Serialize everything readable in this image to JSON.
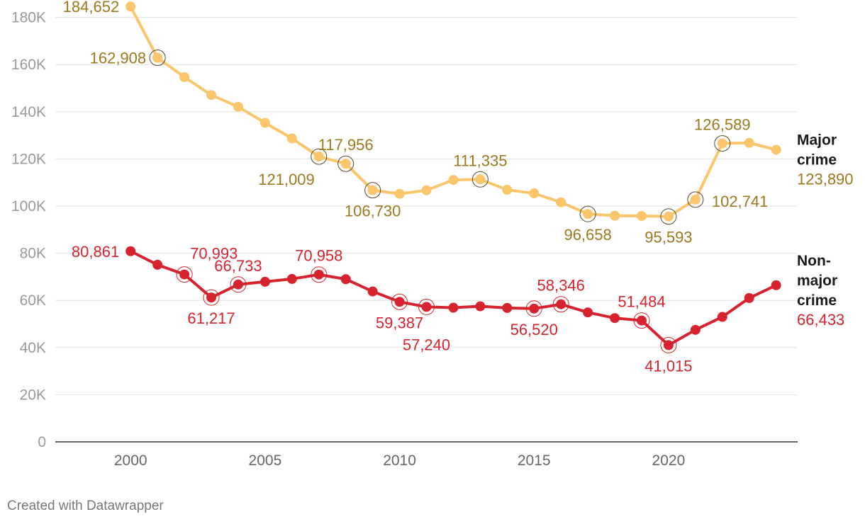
{
  "chart_data": {
    "type": "line",
    "title": "",
    "xlabel": "",
    "ylabel": "",
    "x": [
      2000,
      2001,
      2002,
      2003,
      2004,
      2005,
      2006,
      2007,
      2008,
      2009,
      2010,
      2011,
      2012,
      2013,
      2014,
      2015,
      2016,
      2017,
      2018,
      2019,
      2020,
      2021,
      2022,
      2023,
      2024
    ],
    "xlim": [
      1997.2,
      2024.8
    ],
    "ylim": [
      0,
      185000
    ],
    "yticks": [
      {
        "value": 0,
        "label": "0"
      },
      {
        "value": 20000,
        "label": "20K"
      },
      {
        "value": 40000,
        "label": "40K"
      },
      {
        "value": 60000,
        "label": "60K"
      },
      {
        "value": 80000,
        "label": "80K"
      },
      {
        "value": 100000,
        "label": "100K"
      },
      {
        "value": 120000,
        "label": "120K"
      },
      {
        "value": 140000,
        "label": "140K"
      },
      {
        "value": 160000,
        "label": "160K"
      },
      {
        "value": 180000,
        "label": "180K"
      }
    ],
    "xticks": [
      {
        "value": 2000,
        "label": "2000"
      },
      {
        "value": 2005,
        "label": "2005"
      },
      {
        "value": 2010,
        "label": "2010"
      },
      {
        "value": 2015,
        "label": "2015"
      },
      {
        "value": 2020,
        "label": "2020"
      }
    ],
    "series": [
      {
        "name_lines": [
          "Major",
          "crime"
        ],
        "end_label": "123,890",
        "color": "#fbc56c",
        "label_color": "#9a7a1e",
        "values": [
          184652,
          162908,
          154700,
          147100,
          142100,
          135300,
          128700,
          121009,
          117956,
          106730,
          105200,
          106700,
          111100,
          111335,
          106900,
          105400,
          101600,
          96658,
          95900,
          95800,
          95593,
          102741,
          126589,
          126800,
          123890
        ],
        "labels": [
          {
            "i": 0,
            "text": "184,652",
            "pos": "left"
          },
          {
            "i": 1,
            "text": "162,908",
            "pos": "left",
            "ring": true
          },
          {
            "i": 7,
            "text": "121,009",
            "pos": "below-left",
            "ring": true
          },
          {
            "i": 8,
            "text": "117,956",
            "pos": "above",
            "ring": true
          },
          {
            "i": 9,
            "text": "106,730",
            "pos": "below",
            "ring": true
          },
          {
            "i": 13,
            "text": "111,335",
            "pos": "above",
            "ring": true
          },
          {
            "i": 17,
            "text": "96,658",
            "pos": "below",
            "ring": true
          },
          {
            "i": 20,
            "text": "95,593",
            "pos": "below",
            "ring": true
          },
          {
            "i": 21,
            "text": "102,741",
            "pos": "right",
            "ring": true
          },
          {
            "i": 22,
            "text": "126,589",
            "pos": "above",
            "ring": true
          }
        ]
      },
      {
        "name_lines": [
          "Non-",
          "major",
          "crime"
        ],
        "end_label": "66,433",
        "color": "#d7232d",
        "label_color": "#d7232d",
        "values": [
          80861,
          75100,
          70993,
          61217,
          66733,
          67900,
          69100,
          70958,
          69000,
          63800,
          59387,
          57240,
          56900,
          57500,
          56800,
          56520,
          58346,
          54900,
          52500,
          51484,
          41015,
          47500,
          53000,
          61000,
          66433
        ],
        "labels": [
          {
            "i": 0,
            "text": "80,861",
            "pos": "left"
          },
          {
            "i": 2,
            "text": "70,993",
            "pos": "above-right",
            "ring": true
          },
          {
            "i": 3,
            "text": "61,217",
            "pos": "below",
            "ring": true
          },
          {
            "i": 4,
            "text": "66,733",
            "pos": "above",
            "ring": true
          },
          {
            "i": 7,
            "text": "70,958",
            "pos": "above",
            "ring": true
          },
          {
            "i": 10,
            "text": "59,387",
            "pos": "below",
            "ring": true
          },
          {
            "i": 11,
            "text": "57,240",
            "pos": "below-far",
            "ring": true
          },
          {
            "i": 15,
            "text": "56,520",
            "pos": "below",
            "ring": true
          },
          {
            "i": 16,
            "text": "58,346",
            "pos": "above",
            "ring": true
          },
          {
            "i": 19,
            "text": "51,484",
            "pos": "above",
            "ring": true
          },
          {
            "i": 20,
            "text": "41,015",
            "pos": "below",
            "ring": true
          }
        ]
      }
    ]
  },
  "credit": "Created with Datawrapper"
}
